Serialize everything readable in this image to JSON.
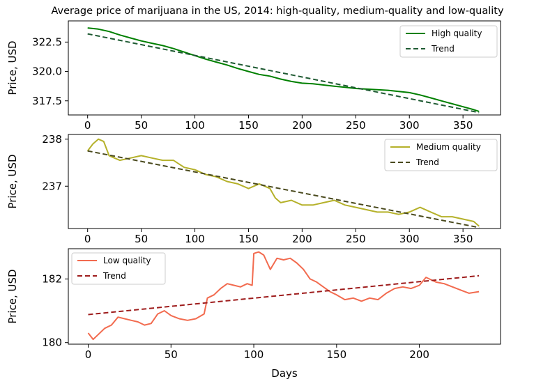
{
  "figure": {
    "title": "Average price of marijuana in the US, 2014: high-quality, medium-quality and low-quality",
    "xlabel": "Days"
  },
  "chart_data": [
    {
      "type": "line",
      "title": "Average price of marijuana in the US, 2014: high-quality, medium-quality and low-quality",
      "xlabel": "",
      "ylabel": "Price, USD",
      "xlim": [
        -18,
        385
      ],
      "ylim": [
        316.3,
        324.3
      ],
      "xticks": [
        0,
        50,
        100,
        150,
        200,
        250,
        300,
        350
      ],
      "xtick_labels": [
        "0",
        "50",
        "100",
        "150",
        "200",
        "250",
        "300",
        "350"
      ],
      "yticks": [
        317.5,
        320.0,
        322.5
      ],
      "ytick_labels": [
        "317.5",
        "320.0",
        "322.5"
      ],
      "grid": false,
      "legend": "top-right",
      "series": [
        {
          "name": "High quality",
          "color": "#008000",
          "style": "solid",
          "x": [
            0,
            10,
            20,
            30,
            40,
            50,
            60,
            70,
            80,
            90,
            100,
            110,
            120,
            130,
            140,
            150,
            160,
            170,
            180,
            190,
            200,
            210,
            220,
            230,
            240,
            250,
            260,
            270,
            280,
            290,
            300,
            310,
            320,
            330,
            340,
            350,
            360,
            365
          ],
          "y": [
            323.7,
            323.6,
            323.4,
            323.1,
            322.85,
            322.6,
            322.4,
            322.2,
            321.95,
            321.65,
            321.35,
            321.05,
            320.8,
            320.55,
            320.25,
            320.0,
            319.75,
            319.6,
            319.35,
            319.15,
            319.0,
            318.95,
            318.85,
            318.75,
            318.65,
            318.55,
            318.5,
            318.45,
            318.4,
            318.3,
            318.2,
            318.0,
            317.75,
            317.5,
            317.25,
            317.0,
            316.75,
            316.6
          ]
        },
        {
          "name": "Trend",
          "color": "#1e5a32",
          "style": "dashed",
          "x": [
            0,
            365
          ],
          "y": [
            323.2,
            316.5
          ]
        }
      ]
    },
    {
      "type": "line",
      "xlabel": "",
      "ylabel": "Price, USD",
      "xlim": [
        -18,
        385
      ],
      "ylim": [
        236.1,
        238.1
      ],
      "xticks": [
        0,
        50,
        100,
        150,
        200,
        250,
        300,
        350
      ],
      "xtick_labels": [
        "0",
        "50",
        "100",
        "150",
        "200",
        "250",
        "300",
        "350"
      ],
      "yticks": [
        237,
        238
      ],
      "ytick_labels": [
        "237",
        "238"
      ],
      "grid": false,
      "legend": "top-right",
      "series": [
        {
          "name": "Medium quality",
          "color": "#b5b12a",
          "style": "solid",
          "x": [
            0,
            5,
            10,
            15,
            20,
            25,
            30,
            40,
            50,
            60,
            70,
            80,
            90,
            100,
            110,
            120,
            130,
            140,
            150,
            160,
            170,
            175,
            180,
            190,
            200,
            210,
            220,
            230,
            240,
            250,
            260,
            270,
            280,
            290,
            300,
            310,
            320,
            330,
            340,
            350,
            360,
            365
          ],
          "y": [
            237.75,
            237.9,
            238.0,
            237.95,
            237.65,
            237.6,
            237.55,
            237.6,
            237.65,
            237.6,
            237.55,
            237.55,
            237.4,
            237.35,
            237.25,
            237.2,
            237.1,
            237.05,
            236.95,
            237.05,
            236.95,
            236.75,
            236.65,
            236.7,
            236.6,
            236.6,
            236.65,
            236.7,
            236.6,
            236.55,
            236.5,
            236.45,
            236.45,
            236.4,
            236.45,
            236.55,
            236.45,
            236.35,
            236.35,
            236.3,
            236.25,
            236.15
          ]
        },
        {
          "name": "Trend",
          "color": "#4a4a1e",
          "style": "dashed",
          "x": [
            0,
            365
          ],
          "y": [
            237.75,
            236.12
          ]
        }
      ]
    },
    {
      "type": "line",
      "xlabel": "Days",
      "ylabel": "Price, USD",
      "xlim": [
        -12,
        249
      ],
      "ylim": [
        179.95,
        182.95
      ],
      "xticks": [
        0,
        50,
        100,
        150,
        200
      ],
      "xtick_labels": [
        "0",
        "50",
        "100",
        "150",
        "200"
      ],
      "yticks": [
        180,
        182
      ],
      "ytick_labels": [
        "180",
        "182"
      ],
      "grid": false,
      "legend": "top-left",
      "series": [
        {
          "name": "Low quality",
          "color": "#f26b4f",
          "style": "solid",
          "x": [
            0,
            3,
            6,
            10,
            14,
            18,
            22,
            26,
            30,
            34,
            38,
            42,
            46,
            50,
            55,
            60,
            65,
            70,
            72,
            76,
            80,
            84,
            88,
            92,
            96,
            99,
            100,
            103,
            106,
            110,
            114,
            118,
            122,
            126,
            130,
            134,
            138,
            142,
            146,
            150,
            155,
            160,
            165,
            170,
            175,
            180,
            185,
            190,
            195,
            200,
            204,
            210,
            215,
            220,
            225,
            230,
            236
          ],
          "y": [
            180.3,
            180.1,
            180.25,
            180.45,
            180.55,
            180.8,
            180.75,
            180.7,
            180.65,
            180.55,
            180.6,
            180.9,
            181.0,
            180.85,
            180.75,
            180.7,
            180.75,
            180.9,
            181.4,
            181.5,
            181.7,
            181.85,
            181.8,
            181.75,
            181.85,
            181.8,
            182.8,
            182.85,
            182.75,
            182.3,
            182.65,
            182.6,
            182.65,
            182.5,
            182.3,
            182.0,
            181.9,
            181.75,
            181.6,
            181.5,
            181.35,
            181.4,
            181.3,
            181.4,
            181.35,
            181.55,
            181.7,
            181.75,
            181.7,
            181.8,
            182.05,
            181.9,
            181.85,
            181.75,
            181.65,
            181.55,
            181.6
          ]
        },
        {
          "name": "Trend",
          "color": "#9e1c1c",
          "style": "dashed",
          "x": [
            0,
            236
          ],
          "y": [
            180.88,
            182.1
          ]
        }
      ]
    }
  ]
}
